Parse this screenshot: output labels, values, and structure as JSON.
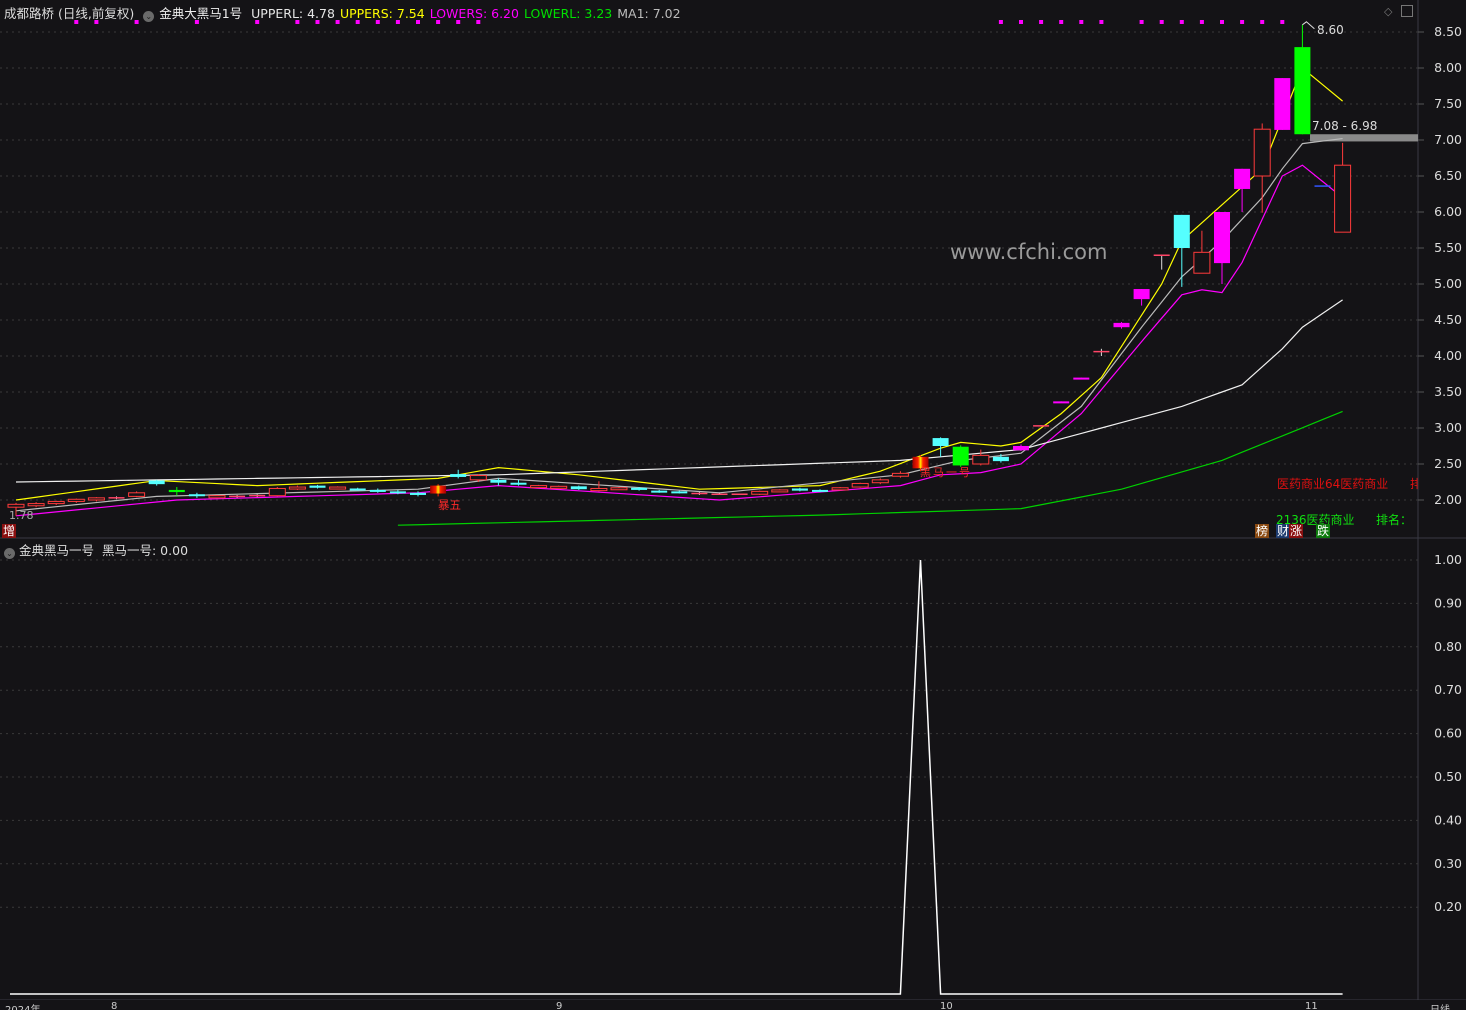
{
  "header": {
    "stock": "成都路桥 (日线,前复权)",
    "indicator": "金典大黑马1号",
    "values": [
      {
        "label": "UPPERL: 4.78",
        "color": "#e6e6e6"
      },
      {
        "label": "UPPERS: 7.54",
        "color": "#ffff00"
      },
      {
        "label": "LOWERS: 6.20",
        "color": "#ff00ff"
      },
      {
        "label": "LOWERL: 3.23",
        "color": "#00e000"
      },
      {
        "label": "MA1: 7.02",
        "color": "#bbbbbb"
      }
    ]
  },
  "sub_header": {
    "indicator": "金典黑马一号",
    "value_label": "黑马一号: 0.00"
  },
  "watermark": "www.cfchi.com",
  "annotations": {
    "high_label": "8.60",
    "low_label": "1.78",
    "range_label": "7.08 - 6.98",
    "marker_zeng": "增",
    "marker_text_1": "暴五",
    "marker_text_2": "黑马一号",
    "sector_red": "医药商业64医药商业",
    "sector_red_tail": "排",
    "sector_green": "2136医药商业",
    "rank_label": "排名：",
    "badges": [
      {
        "label": "榜",
        "color": "#8a4a12"
      },
      {
        "label": "财",
        "color": "#1d3b6e"
      },
      {
        "label": "涨",
        "color": "#8a1010"
      },
      {
        "label": "跌",
        "color": "#0d7a0d"
      }
    ]
  },
  "xaxis": {
    "labels": [
      "2024年",
      "8",
      "9",
      "10",
      "11"
    ],
    "period": "日线"
  },
  "colors": {
    "up": "#ff3b3b",
    "cyan": "#55ffff",
    "magenta": "#ff00ff",
    "green": "#00ff00",
    "blue": "#3355ff",
    "background": "#141316"
  },
  "chart_data": [
    {
      "type": "candlestick",
      "ylim": [
        1.5,
        8.7
      ],
      "yticks": [
        "8.50",
        "8.00",
        "7.50",
        "7.00",
        "6.50",
        "6.00",
        "5.50",
        "5.00",
        "4.50",
        "4.00",
        "3.50",
        "3.00",
        "2.50",
        "2.00"
      ],
      "grid": true,
      "candle_fields": [
        "style",
        "open",
        "high",
        "low",
        "close"
      ],
      "candles": [
        [
          "u",
          1.9,
          1.96,
          1.78,
          1.94
        ],
        [
          "u",
          1.92,
          1.97,
          1.9,
          1.95
        ],
        [
          "u",
          1.95,
          1.99,
          1.93,
          1.98
        ],
        [
          "u",
          1.98,
          2.02,
          1.96,
          2.01
        ],
        [
          "u",
          2.0,
          2.04,
          1.98,
          2.03
        ],
        [
          "d",
          2.03,
          2.05,
          2.01,
          2.03
        ],
        [
          "u",
          2.05,
          2.12,
          2.04,
          2.1
        ],
        [
          "c",
          2.27,
          2.28,
          2.2,
          2.22
        ],
        [
          "g",
          2.14,
          2.18,
          2.06,
          2.11
        ],
        [
          "c",
          2.08,
          2.1,
          2.03,
          2.07
        ],
        [
          "u",
          2.03,
          2.07,
          2.02,
          2.06
        ],
        [
          "d",
          2.05,
          2.07,
          2.03,
          2.05
        ],
        [
          "d",
          2.06,
          2.08,
          2.04,
          2.06
        ],
        [
          "u",
          2.06,
          2.18,
          2.05,
          2.16
        ],
        [
          "u",
          2.16,
          2.2,
          2.14,
          2.18
        ],
        [
          "c",
          2.2,
          2.21,
          2.16,
          2.17
        ],
        [
          "u",
          2.16,
          2.19,
          2.15,
          2.18
        ],
        [
          "c",
          2.16,
          2.17,
          2.13,
          2.14
        ],
        [
          "c",
          2.14,
          2.16,
          2.1,
          2.12
        ],
        [
          "c",
          2.12,
          2.14,
          2.08,
          2.1
        ],
        [
          "c",
          2.1,
          2.12,
          2.05,
          2.07
        ],
        [
          "s",
          2.09,
          2.22,
          2.05,
          2.2
        ],
        [
          "c",
          2.36,
          2.42,
          2.3,
          2.32
        ],
        [
          "u",
          2.28,
          2.36,
          2.25,
          2.34
        ],
        [
          "c",
          2.28,
          2.3,
          2.2,
          2.24
        ],
        [
          "c",
          2.24,
          2.28,
          2.2,
          2.22
        ],
        [
          "u",
          2.18,
          2.21,
          2.17,
          2.2
        ],
        [
          "u",
          2.18,
          2.2,
          2.17,
          2.19
        ],
        [
          "c",
          2.19,
          2.2,
          2.14,
          2.15
        ],
        [
          "u",
          2.13,
          2.26,
          2.12,
          2.16
        ],
        [
          "u",
          2.16,
          2.18,
          2.15,
          2.17
        ],
        [
          "c",
          2.17,
          2.18,
          2.13,
          2.14
        ],
        [
          "c",
          2.13,
          2.14,
          2.1,
          2.11
        ],
        [
          "c",
          2.12,
          2.13,
          2.09,
          2.1
        ],
        [
          "d",
          2.09,
          2.11,
          2.07,
          2.09
        ],
        [
          "d",
          2.08,
          2.1,
          2.07,
          2.08
        ],
        [
          "d",
          2.08,
          2.09,
          2.07,
          2.08
        ],
        [
          "u",
          2.08,
          2.13,
          2.07,
          2.12
        ],
        [
          "u",
          2.12,
          2.15,
          2.11,
          2.14
        ],
        [
          "c",
          2.16,
          2.17,
          2.12,
          2.13
        ],
        [
          "c",
          2.14,
          2.15,
          2.11,
          2.12
        ],
        [
          "u",
          2.14,
          2.18,
          2.13,
          2.17
        ],
        [
          "u",
          2.18,
          2.24,
          2.17,
          2.23
        ],
        [
          "u",
          2.24,
          2.3,
          2.22,
          2.28
        ],
        [
          "u",
          2.33,
          2.4,
          2.31,
          2.37
        ],
        [
          "s",
          2.44,
          2.62,
          2.4,
          2.6
        ],
        [
          "c",
          2.86,
          2.87,
          2.6,
          2.75
        ],
        [
          "g",
          2.74,
          2.76,
          2.46,
          2.48
        ],
        [
          "u",
          2.5,
          2.7,
          2.48,
          2.62
        ],
        [
          "c",
          2.6,
          2.64,
          2.52,
          2.54
        ],
        [
          "m",
          2.75,
          2.77,
          2.68,
          2.69
        ],
        [
          "d",
          3.03,
          3.04,
          3.02,
          3.03
        ],
        [
          "m",
          3.37,
          3.37,
          3.35,
          3.36
        ],
        [
          "m",
          3.7,
          3.7,
          3.68,
          3.69
        ],
        [
          "d",
          4.06,
          4.1,
          4.0,
          4.06
        ],
        [
          "m",
          4.46,
          4.47,
          4.38,
          4.4
        ],
        [
          "m",
          4.93,
          4.93,
          4.7,
          4.79
        ],
        [
          "d",
          5.4,
          5.41,
          5.2,
          5.4
        ],
        [
          "c",
          5.96,
          5.96,
          4.96,
          5.5
        ],
        [
          "u",
          5.15,
          5.74,
          5.15,
          5.44
        ],
        [
          "m",
          6.0,
          6.0,
          5.0,
          5.29
        ],
        [
          "m",
          6.6,
          6.6,
          6.0,
          6.32
        ],
        [
          "u",
          6.5,
          7.23,
          5.99,
          7.15
        ],
        [
          "m",
          7.86,
          7.86,
          7.14,
          7.14
        ],
        [
          "g",
          8.29,
          8.6,
          7.08,
          7.08
        ],
        [
          "b",
          6.36,
          6.36,
          6.36,
          6.36
        ],
        [
          "u",
          5.72,
          6.96,
          5.72,
          6.65
        ]
      ],
      "series": [
        {
          "name": "UPPERS",
          "color": "#ffff00",
          "points": [
            [
              0,
              2.0
            ],
            [
              7,
              2.27
            ],
            [
              12,
              2.2
            ],
            [
              21,
              2.3
            ],
            [
              24,
              2.45
            ],
            [
              28,
              2.35
            ],
            [
              34,
              2.15
            ],
            [
              40,
              2.2
            ],
            [
              43,
              2.4
            ],
            [
              46,
              2.72
            ],
            [
              47,
              2.8
            ],
            [
              49,
              2.75
            ],
            [
              50,
              2.8
            ],
            [
              52,
              3.2
            ],
            [
              54,
              3.7
            ],
            [
              57,
              5.0
            ],
            [
              58,
              5.6
            ],
            [
              59,
              5.85
            ],
            [
              60,
              6.1
            ],
            [
              61,
              6.35
            ],
            [
              62,
              6.6
            ],
            [
              63,
              7.3
            ],
            [
              64,
              8.0
            ],
            [
              66,
              7.54
            ]
          ]
        },
        {
          "name": "MA1",
          "color": "#bbbbbb",
          "points": [
            [
              0,
              1.85
            ],
            [
              7,
              2.05
            ],
            [
              20,
              2.15
            ],
            [
              24,
              2.3
            ],
            [
              35,
              2.1
            ],
            [
              44,
              2.35
            ],
            [
              47,
              2.55
            ],
            [
              50,
              2.65
            ],
            [
              53,
              3.3
            ],
            [
              56,
              4.4
            ],
            [
              58,
              5.1
            ],
            [
              60,
              5.6
            ],
            [
              62,
              6.2
            ],
            [
              63,
              6.6
            ],
            [
              64,
              6.95
            ],
            [
              66,
              7.02
            ]
          ]
        },
        {
          "name": "LOWERS",
          "color": "#ff00ff",
          "points": [
            [
              0,
              1.78
            ],
            [
              8,
              2.0
            ],
            [
              20,
              2.1
            ],
            [
              24,
              2.2
            ],
            [
              35,
              2.0
            ],
            [
              44,
              2.2
            ],
            [
              46,
              2.35
            ],
            [
              48,
              2.38
            ],
            [
              50,
              2.5
            ],
            [
              53,
              3.2
            ],
            [
              56,
              4.2
            ],
            [
              58,
              4.85
            ],
            [
              59,
              4.92
            ],
            [
              60,
              4.88
            ],
            [
              61,
              5.3
            ],
            [
              62,
              5.9
            ],
            [
              63,
              6.5
            ],
            [
              64,
              6.65
            ],
            [
              66,
              6.2
            ]
          ]
        },
        {
          "name": "UPPERL",
          "color": "#f0f0f0",
          "points": [
            [
              0,
              2.25
            ],
            [
              24,
              2.35
            ],
            [
              44,
              2.55
            ],
            [
              50,
              2.7
            ],
            [
              54,
              3.0
            ],
            [
              58,
              3.3
            ],
            [
              61,
              3.6
            ],
            [
              63,
              4.1
            ],
            [
              64,
              4.4
            ],
            [
              66,
              4.78
            ]
          ]
        },
        {
          "name": "LOWERL",
          "color": "#00d000",
          "points": [
            [
              19,
              1.65
            ],
            [
              40,
              1.79
            ],
            [
              50,
              1.88
            ],
            [
              55,
              2.15
            ],
            [
              60,
              2.55
            ],
            [
              66,
              3.23
            ]
          ]
        }
      ],
      "signal_indices": [
        3,
        4,
        6,
        9,
        12,
        14,
        15,
        16,
        17,
        18,
        19,
        20,
        21,
        22,
        23,
        49,
        50,
        51,
        52,
        53,
        54,
        56,
        57,
        58,
        59,
        60,
        61,
        62,
        63
      ],
      "range_band": [
        6.98,
        7.08
      ]
    },
    {
      "type": "line",
      "ylim": [
        0,
        1.05
      ],
      "yticks": [
        "1.00",
        "0.90",
        "0.80",
        "0.70",
        "0.60",
        "0.50",
        "0.40",
        "0.30",
        "0.20"
      ],
      "grid": true,
      "series": [
        {
          "name": "黑马一号",
          "color": "#ffffff",
          "values_by_index": {
            "44": 0,
            "45": 1.0,
            "46": 0
          },
          "default": 0,
          "range": [
            0,
            66
          ]
        }
      ]
    }
  ]
}
